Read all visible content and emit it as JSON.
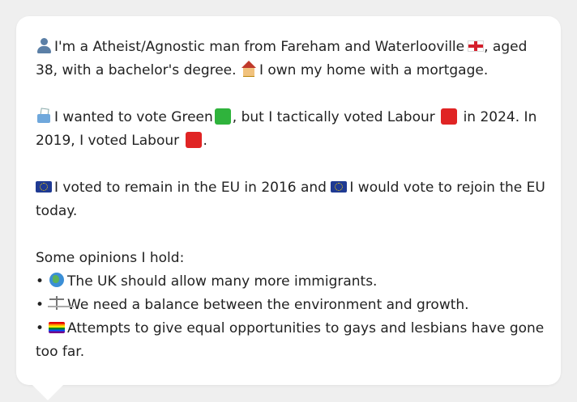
{
  "profile": {
    "line1_a": "I'm a Atheist/Agnostic man from Fareham and Waterlooville",
    "line1_b": ", aged 38, with a bachelor's degree.",
    "line1_c": "I own my home with a mortgage."
  },
  "vote": {
    "text_a": "I wanted to vote Green",
    "text_b": ", but I tactically voted Labour",
    "text_c": "in 2024. In 2019, I voted Labour",
    "text_d": "."
  },
  "eu": {
    "text_a": "I voted to remain in the EU in 2016 and",
    "text_b": "I would vote to rejoin the EU today."
  },
  "opinions": {
    "heading": "Some opinions I hold:",
    "bullet": "•",
    "items": [
      "The UK should allow many more immigrants.",
      "We need a balance between the environment and growth.",
      "Attempts to give equal opportunities to gays and lesbians have gone too far."
    ]
  },
  "colors": {
    "green_party": "#2fb33c",
    "labour": "#e02424",
    "eu_blue": "#1f3a93"
  },
  "icons": {
    "person": "person-icon",
    "flag": "england-flag-icon",
    "house": "house-icon",
    "ballot": "ballot-box-icon",
    "eu": "eu-flag-icon",
    "globe": "globe-icon",
    "scales": "balance-scale-icon",
    "rainbow": "rainbow-flag-icon"
  }
}
